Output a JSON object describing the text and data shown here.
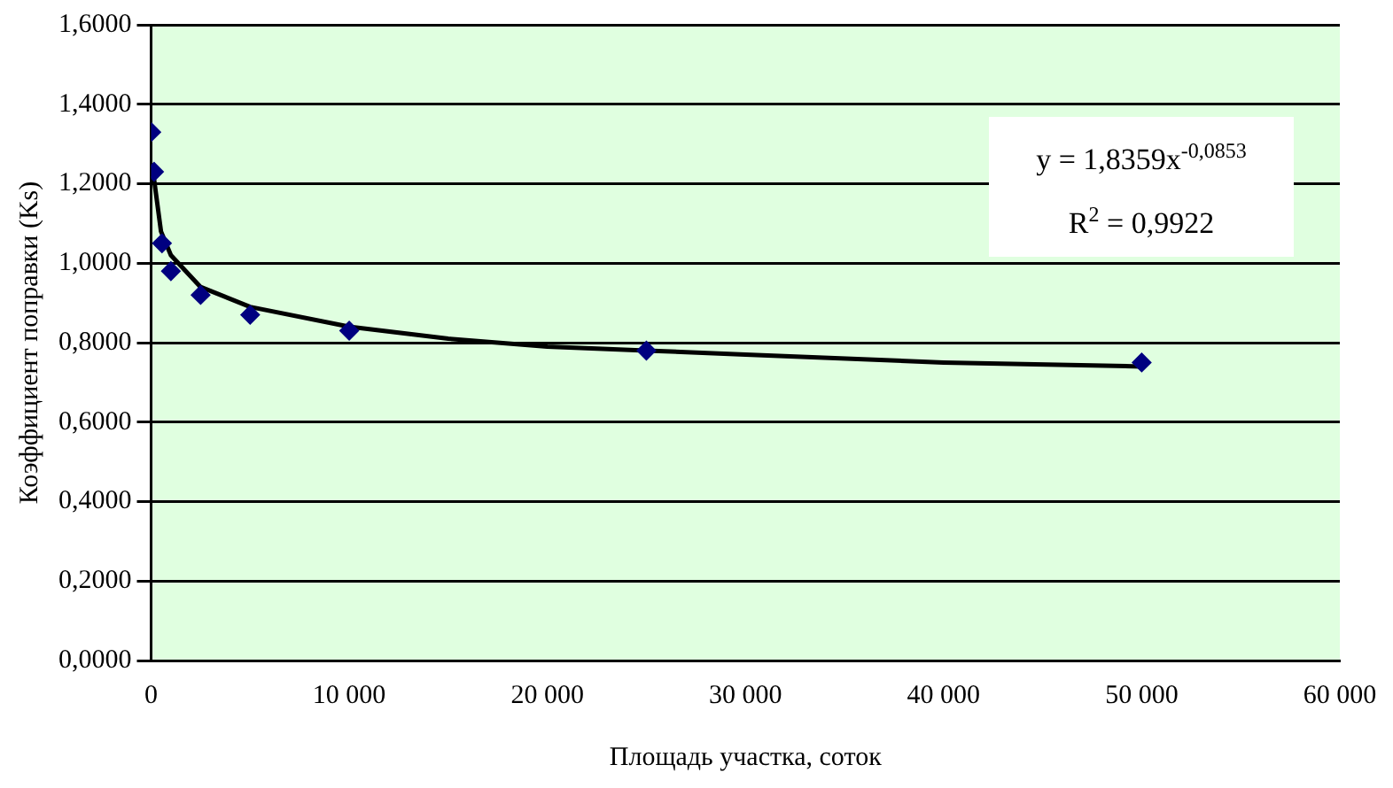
{
  "chart_data": {
    "type": "scatter",
    "xlabel": "Площадь участка, соток",
    "ylabel": "Коэффициент поправки (Ks)",
    "series": [
      {
        "type": "scatter",
        "color": "#000080",
        "marker": "diamond",
        "x": [
          10,
          150,
          550,
          1000,
          2500,
          5000,
          10000,
          25000,
          50000
        ],
        "values": [
          1.33,
          1.23,
          1.05,
          0.98,
          0.92,
          0.87,
          0.83,
          0.78,
          0.75
        ]
      },
      {
        "type": "line",
        "color": "#000000",
        "marker": "none",
        "x": [
          100,
          500,
          1000,
          2500,
          5000,
          10000,
          15000,
          20000,
          25000,
          30000,
          40000,
          50000
        ],
        "values": [
          1.23,
          1.08,
          1.02,
          0.94,
          0.89,
          0.84,
          0.81,
          0.79,
          0.78,
          0.77,
          0.75,
          0.74
        ]
      }
    ],
    "xlim": [
      0,
      60000
    ],
    "xticks": [
      0,
      {
        "value": 10000,
        "label": "10 000"
      },
      {
        "value": 20000,
        "label": "20 000"
      },
      {
        "value": 30000,
        "label": "30 000"
      },
      {
        "value": 40000,
        "label": "40 000"
      },
      {
        "value": 50000,
        "label": "50 000"
      },
      {
        "value": 60000,
        "label": "60 000"
      }
    ],
    "ylim": [
      0,
      1.6
    ],
    "yticks": [
      {
        "value": 0,
        "label": "0,0000"
      },
      {
        "value": 0.2,
        "label": "0,2000"
      },
      {
        "value": 0.4,
        "label": "0,4000"
      },
      {
        "value": 0.6,
        "label": "0,6000"
      },
      {
        "value": 0.8,
        "label": "0,8000"
      },
      {
        "value": 1,
        "label": "1,0000"
      },
      {
        "value": 1.2,
        "label": "1,2000"
      },
      {
        "value": 1.4,
        "label": "1,4000"
      },
      {
        "value": 1.6,
        "label": "1,6000"
      }
    ],
    "grid": "y",
    "legend": false,
    "annotations": [
      "y = 1,8359x$^{-0,0853}$",
      "R$^{2}$ = 0,9922"
    ]
  }
}
